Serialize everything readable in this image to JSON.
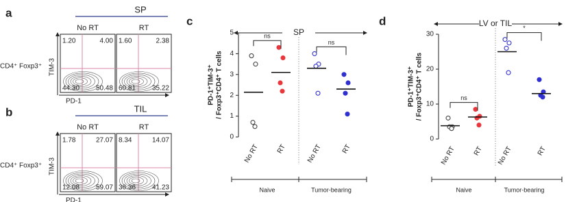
{
  "flow_panels": [
    {
      "letter": "a",
      "title": "SP",
      "title_color": "#1fa34a",
      "columns": [
        "No RT",
        "RT"
      ],
      "row_label": "CD4⁺ Foxp3⁺",
      "ylabel": "TIM-3",
      "xlabel": "PD-1",
      "quadrants": [
        [
          "1.20",
          "4.00",
          "44.30",
          "50.48"
        ],
        [
          "1.60",
          "2.38",
          "60.81",
          "35.22"
        ]
      ]
    },
    {
      "letter": "b",
      "title": "TIL",
      "title_color": "#e02020",
      "columns": [
        "No RT",
        "RT"
      ],
      "row_label": "CD4⁺ Foxp3⁺",
      "ylabel": "TIM-3",
      "xlabel": "PD-1",
      "quadrants": [
        [
          "1.78",
          "27.07",
          "12.08",
          "59.07"
        ],
        [
          "8.34",
          "14.07",
          "36.36",
          "41.23"
        ]
      ]
    }
  ],
  "chart_data": [
    {
      "type": "dotplot",
      "letter": "c",
      "title": "SP",
      "title_color": "#a020c0",
      "ylabel": [
        "PD-1⁺TIM-3⁺",
        "/ Foxp3⁺CD4⁺ T cells"
      ],
      "categories": [
        "No RT",
        "RT",
        "No RT",
        "RT"
      ],
      "groups": [
        {
          "name": "Naive",
          "color": "#e8383d"
        },
        {
          "name": "Tumor-bearing",
          "color": "#3030d0"
        }
      ],
      "marker_colors": [
        "#444444",
        "#e8383d",
        "#3030d0",
        "#3030d0"
      ],
      "marker_filled": [
        false,
        true,
        false,
        true
      ],
      "values": [
        [
          3.9,
          3.5,
          0.7,
          0.5
        ],
        [
          4.3,
          3.8,
          2.6,
          2.2
        ],
        [
          4.0,
          3.5,
          3.4,
          2.1
        ],
        [
          3.0,
          2.6,
          2.1,
          1.1
        ]
      ],
      "means": [
        2.15,
        3.1,
        3.3,
        2.3
      ],
      "ylim": [
        0,
        5
      ],
      "yticks": [
        0,
        1,
        2,
        3,
        4,
        5
      ],
      "annotations": [
        {
          "text": "ns",
          "between": [
            0,
            1
          ]
        },
        {
          "text": "ns",
          "between": [
            2,
            3
          ]
        }
      ]
    },
    {
      "type": "dotplot",
      "letter": "d",
      "title": "LV or TIL",
      "title_color": "#a020c0",
      "ylabel": [
        "PD-1⁺TIM-3⁺",
        "/ Foxp3⁺CD4⁺ T cells"
      ],
      "categories": [
        "No RT",
        "RT",
        "No RT",
        "RT"
      ],
      "groups": [
        {
          "name": "Naive",
          "color": "#e8383d"
        },
        {
          "name": "Tumor-bearing",
          "color": "#3030d0"
        }
      ],
      "marker_colors": [
        "#444444",
        "#e8383d",
        "#3030d0",
        "#3030d0"
      ],
      "marker_filled": [
        false,
        true,
        false,
        true
      ],
      "values": [
        [
          6,
          3.5,
          3.5,
          3
        ],
        [
          8.5,
          6.5,
          6,
          4
        ],
        [
          28.5,
          27.5,
          26,
          19
        ],
        [
          17,
          13.5,
          12.5,
          12
        ]
      ],
      "means": [
        3.8,
        6.3,
        25,
        13
      ],
      "ylim": [
        0,
        30
      ],
      "yticks": [
        0,
        10,
        20,
        30
      ],
      "annotations": [
        {
          "text": "ns",
          "between": [
            0,
            1
          ]
        },
        {
          "text": "*",
          "between": [
            2,
            3
          ]
        }
      ]
    }
  ]
}
